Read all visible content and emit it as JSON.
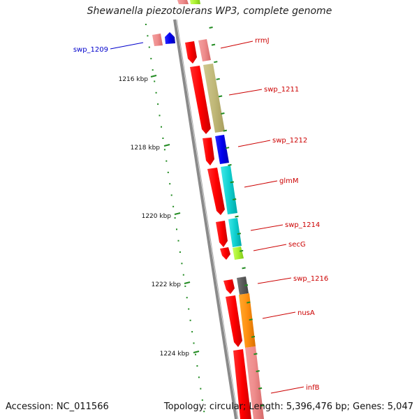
{
  "title": "Shewanella piezotolerans WP3, complete genome",
  "footer": {
    "accession": "Accession: NC_011566",
    "info": "Topology: circular; Length: 5,396,476 bp; Genes: 5,047"
  },
  "ticks": [
    {
      "label": "1216 kbp"
    },
    {
      "label": "1218 kbp"
    },
    {
      "label": "1220 kbp"
    },
    {
      "label": "1222 kbp"
    },
    {
      "label": "1224 kbp"
    }
  ],
  "genes": [
    {
      "label": "swp_1209",
      "color": "#0000cc"
    },
    {
      "label": "rrmJ",
      "color": "#cc0000"
    },
    {
      "label": "swp_1211",
      "color": "#cc0000"
    },
    {
      "label": "swp_1212",
      "color": "#cc0000"
    },
    {
      "label": "glmM",
      "color": "#cc0000"
    },
    {
      "label": "swp_1214",
      "color": "#cc0000"
    },
    {
      "label": "secG",
      "color": "#cc0000"
    },
    {
      "label": "swp_1216",
      "color": "#cc0000"
    },
    {
      "label": "nusA",
      "color": "#cc0000"
    },
    {
      "label": "infB",
      "color": "#cc0000"
    }
  ],
  "colors": {
    "cds_red": "#ff0000",
    "backbone": "#808080",
    "tick_green": "#228b22"
  }
}
